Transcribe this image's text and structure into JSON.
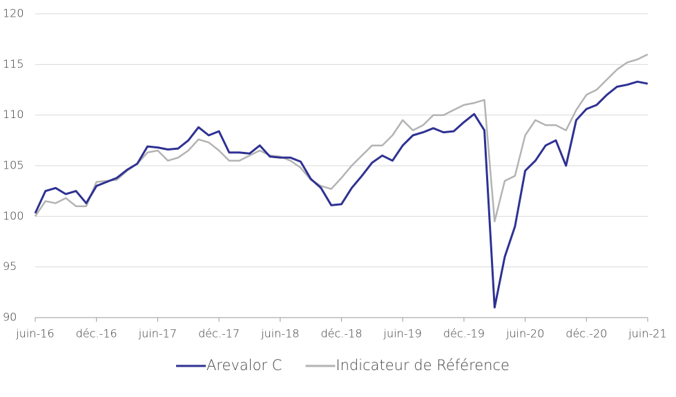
{
  "chart_data": {
    "type": "line",
    "categories": [
      "juin-16",
      null,
      null,
      null,
      null,
      null,
      "déc.-16",
      null,
      null,
      null,
      null,
      null,
      "juin-17",
      null,
      null,
      null,
      null,
      null,
      "déc.-17",
      null,
      null,
      null,
      null,
      null,
      "juin-18",
      null,
      null,
      null,
      null,
      null,
      "déc.-18",
      null,
      null,
      null,
      null,
      null,
      "juin-19",
      null,
      null,
      null,
      null,
      null,
      "déc.-19",
      null,
      null,
      null,
      null,
      null,
      "juin-20",
      null,
      null,
      null,
      null,
      null,
      "déc.-20",
      null,
      null,
      null,
      null,
      null,
      "juin-21"
    ],
    "series": [
      {
        "name": "Arevalor C",
        "color": "#2e3192",
        "values": [
          100.3,
          102.5,
          102.8,
          102.2,
          102.5,
          101.3,
          103.0,
          103.4,
          103.8,
          104.6,
          105.2,
          106.9,
          106.8,
          106.6,
          106.7,
          107.5,
          108.8,
          108.0,
          108.4,
          106.3,
          106.3,
          106.2,
          107.0,
          105.9,
          105.8,
          105.8,
          105.4,
          103.7,
          102.8,
          101.1,
          101.2,
          102.8,
          104.0,
          105.3,
          106.0,
          105.5,
          107.0,
          108.0,
          108.3,
          108.7,
          108.3,
          108.4,
          109.3,
          110.1,
          108.5,
          91.0,
          96.0,
          99.0,
          104.5,
          105.5,
          107.0,
          107.5,
          105.0,
          109.5,
          110.6,
          111.0,
          112.0,
          112.8,
          113.0,
          113.3,
          113.1
        ]
      },
      {
        "name": "Indicateur de Référence",
        "color": "#b3b3b3",
        "values": [
          100.0,
          101.5,
          101.3,
          101.8,
          101.0,
          101.0,
          103.4,
          103.5,
          103.6,
          104.5,
          105.2,
          106.3,
          106.5,
          105.5,
          105.8,
          106.5,
          107.6,
          107.3,
          106.5,
          105.5,
          105.5,
          106.0,
          106.5,
          106.0,
          105.9,
          105.5,
          104.8,
          103.6,
          103.0,
          102.7,
          103.8,
          105.0,
          106.0,
          107.0,
          107.0,
          108.0,
          109.5,
          108.5,
          109.0,
          110.0,
          110.0,
          110.5,
          111.0,
          111.2,
          111.5,
          99.5,
          103.5,
          104.0,
          108.0,
          109.5,
          109.0,
          109.0,
          108.5,
          110.5,
          112.0,
          112.5,
          113.5,
          114.5,
          115.2,
          115.5,
          116.0
        ]
      }
    ],
    "ylim": [
      90,
      120
    ],
    "yticks": [
      90,
      95,
      100,
      105,
      110,
      115,
      120
    ],
    "grid": true,
    "legend": "bottom"
  }
}
